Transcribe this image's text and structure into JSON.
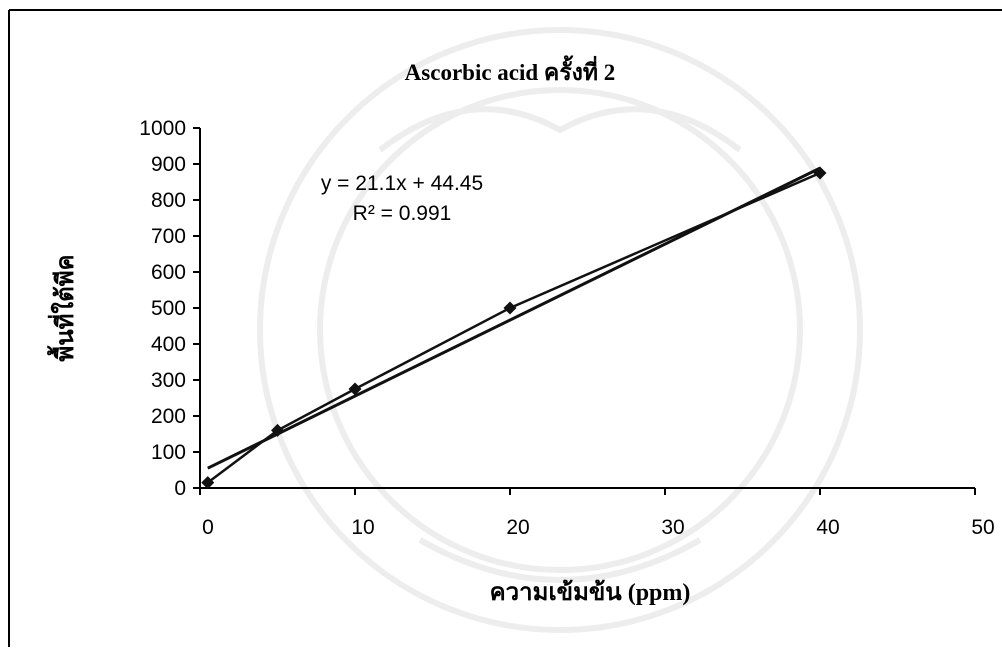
{
  "chart_data": {
    "type": "scatter",
    "title": "Ascorbic acid ครั้งที่ 2",
    "xlabel": "ความเข้มข้น (ppm)",
    "ylabel": "พื้นที่ใต้พีค",
    "xlim": [
      0,
      50
    ],
    "ylim": [
      0,
      1000
    ],
    "xticks": [
      "0",
      "10",
      "20",
      "30",
      "40",
      "50"
    ],
    "yticks": [
      "0",
      "100",
      "200",
      "300",
      "400",
      "500",
      "600",
      "700",
      "800",
      "900",
      "1000"
    ],
    "grid": false,
    "legend": "none",
    "series": [
      {
        "x": [
          0.5,
          5,
          10,
          20,
          40
        ],
        "y": [
          15,
          160,
          275,
          500,
          875
        ]
      }
    ],
    "trendline": {
      "type": "linear",
      "slope": 21.1,
      "intercept": 44.45,
      "equation_label": "y = 21.1x + 44.45",
      "r2_label": "R² = 0.991"
    },
    "colors": {
      "series": "#111111",
      "trendline": "#111111",
      "axis": "#000000"
    }
  }
}
